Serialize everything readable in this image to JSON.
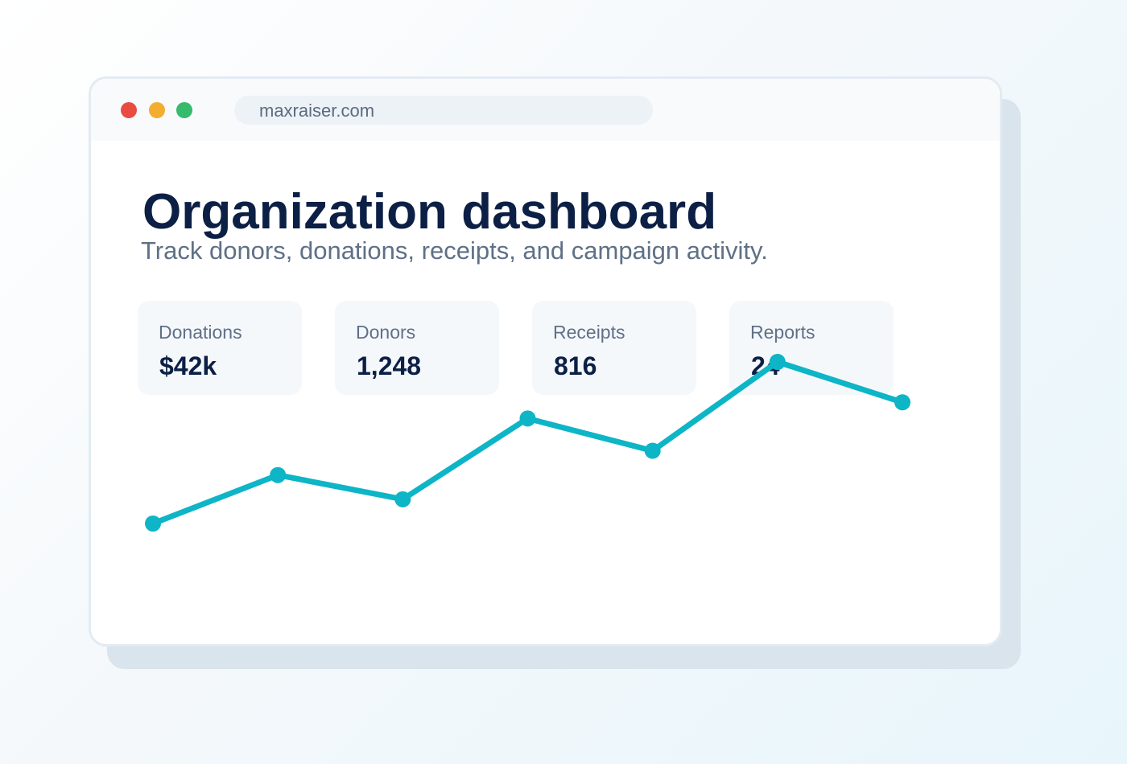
{
  "browser": {
    "url": "maxraiser.com",
    "controls": {
      "close_color": "#e94b43",
      "minimize_color": "#f3ad2f",
      "maximize_color": "#36ba6c"
    }
  },
  "page": {
    "title": "Organization dashboard",
    "subtitle": "Track donors, donations, receipts, and campaign activity."
  },
  "stats": [
    {
      "label": "Donations",
      "value": "$42k"
    },
    {
      "label": "Donors",
      "value": "1,248"
    },
    {
      "label": "Receipts",
      "value": "816"
    },
    {
      "label": "Reports",
      "value": "24"
    }
  ],
  "chart_data": {
    "type": "line",
    "title": "",
    "xlabel": "",
    "ylabel": "",
    "grid": false,
    "color": "#0db5c6",
    "x": [
      1,
      2,
      3,
      4,
      5,
      6,
      7
    ],
    "y": [
      0,
      6,
      3,
      13,
      9,
      20,
      15
    ],
    "ylim": [
      0,
      20
    ]
  }
}
